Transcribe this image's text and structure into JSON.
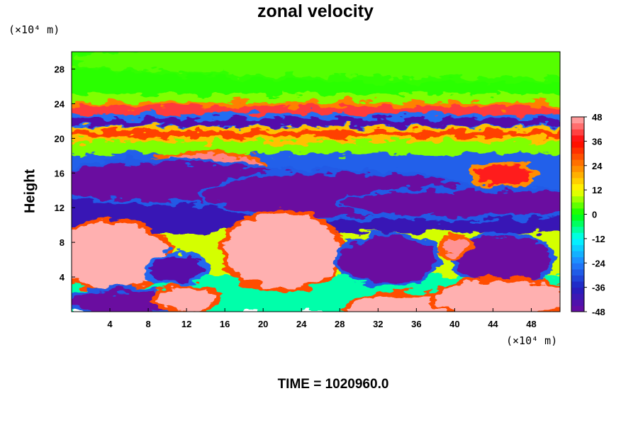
{
  "chart_data": {
    "type": "heatmap",
    "title": "zonal velocity",
    "ylabel": "Height",
    "xunit": "(×10⁴ m)",
    "yunit": "(×10⁴ m)",
    "xlim": [
      0,
      51
    ],
    "ylim": [
      0,
      30
    ],
    "xticks": [
      "4",
      "8",
      "12",
      "16",
      "20",
      "24",
      "28",
      "32",
      "36",
      "40",
      "44",
      "48"
    ],
    "yticks": [
      "4",
      "8",
      "12",
      "16",
      "20",
      "24",
      "28"
    ],
    "colorbar": {
      "range": [
        -48,
        48
      ],
      "ticks": [
        "48",
        "36",
        "24",
        "12",
        "0",
        "-12",
        "-24",
        "-36",
        "-48"
      ],
      "colors": [
        "#6b0aa0",
        "#2020c0",
        "#2080ff",
        "#00ffff",
        "#00ff00",
        "#ffff00",
        "#ff8000",
        "#ff0000",
        "#ffb0b0"
      ]
    },
    "footer": "TIME = 1020960.0",
    "features": [
      {
        "x": 40,
        "y": 29,
        "value": 4
      },
      {
        "x": 25,
        "y": 23.2,
        "value": 40
      },
      {
        "x": 25,
        "y": 21.9,
        "value": -44
      },
      {
        "x": 25,
        "y": 20.5,
        "value": 30
      },
      {
        "x": 14,
        "y": 16.8,
        "value": 45
      },
      {
        "x": 45,
        "y": 15.8,
        "value": 38
      },
      {
        "x": 10,
        "y": 15,
        "value": -48
      },
      {
        "x": 28,
        "y": 13.5,
        "value": -48
      },
      {
        "x": 42,
        "y": 12.5,
        "value": -48
      },
      {
        "x": 4,
        "y": 6.5,
        "value": 48
      },
      {
        "x": 22,
        "y": 7,
        "value": 48
      },
      {
        "x": 11,
        "y": 5,
        "value": -45
      },
      {
        "x": 33,
        "y": 6,
        "value": -48
      },
      {
        "x": 45,
        "y": 6,
        "value": -48
      },
      {
        "x": 40,
        "y": 7.5,
        "value": 46
      },
      {
        "x": 5,
        "y": 1,
        "value": -48
      },
      {
        "x": 12,
        "y": 1.5,
        "value": 48
      },
      {
        "x": 36,
        "y": 0.5,
        "value": 48
      },
      {
        "x": 45,
        "y": 1.5,
        "value": 48
      }
    ]
  }
}
